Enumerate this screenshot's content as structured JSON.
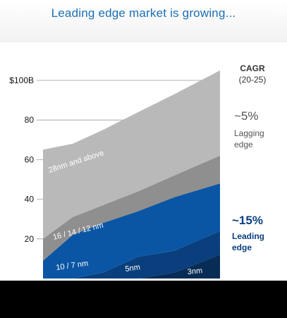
{
  "title": "Leading edge market is growing...",
  "cagr": {
    "heading": "CAGR",
    "period": "(20-25)",
    "lagging_pct": "~5%",
    "lagging_label_1": "Lagging",
    "lagging_label_2": "edge",
    "leading_pct": "~15%",
    "leading_label_1": "Leading",
    "leading_label_2": "edge"
  },
  "colors": {
    "n28": "#b9b9b9",
    "n16": "#8f8f8f",
    "n10": "#0b56a4",
    "n5": "#0a3f7d",
    "n3": "#072c56",
    "title": "#1b6fb5",
    "leading": "#0b3f82"
  },
  "chart_data": {
    "type": "area",
    "stacked": true,
    "ylim": [
      0,
      105
    ],
    "y_ticks": [
      {
        "value": 20,
        "label": "20"
      },
      {
        "value": 40,
        "label": "40"
      },
      {
        "value": 60,
        "label": "60"
      },
      {
        "value": 80,
        "label": "80"
      },
      {
        "value": 100,
        "label": "$100B"
      }
    ],
    "x": [
      0,
      1,
      2,
      3,
      4,
      5
    ],
    "series": [
      {
        "name": "3nm",
        "values": [
          0,
          0,
          0,
          0,
          3,
          12
        ]
      },
      {
        "name": "5nm",
        "values": [
          0,
          0,
          3,
          11,
          11,
          12
        ]
      },
      {
        "name": "10 / 7 nm",
        "values": [
          9,
          22,
          25,
          23,
          27,
          24
        ]
      },
      {
        "name": "16 / 14 / 12 nm",
        "values": [
          11,
          9,
          9,
          10,
          11,
          14
        ]
      },
      {
        "name": "28nm and above",
        "values": [
          45,
          37,
          38,
          40,
          41,
          43
        ]
      }
    ]
  }
}
